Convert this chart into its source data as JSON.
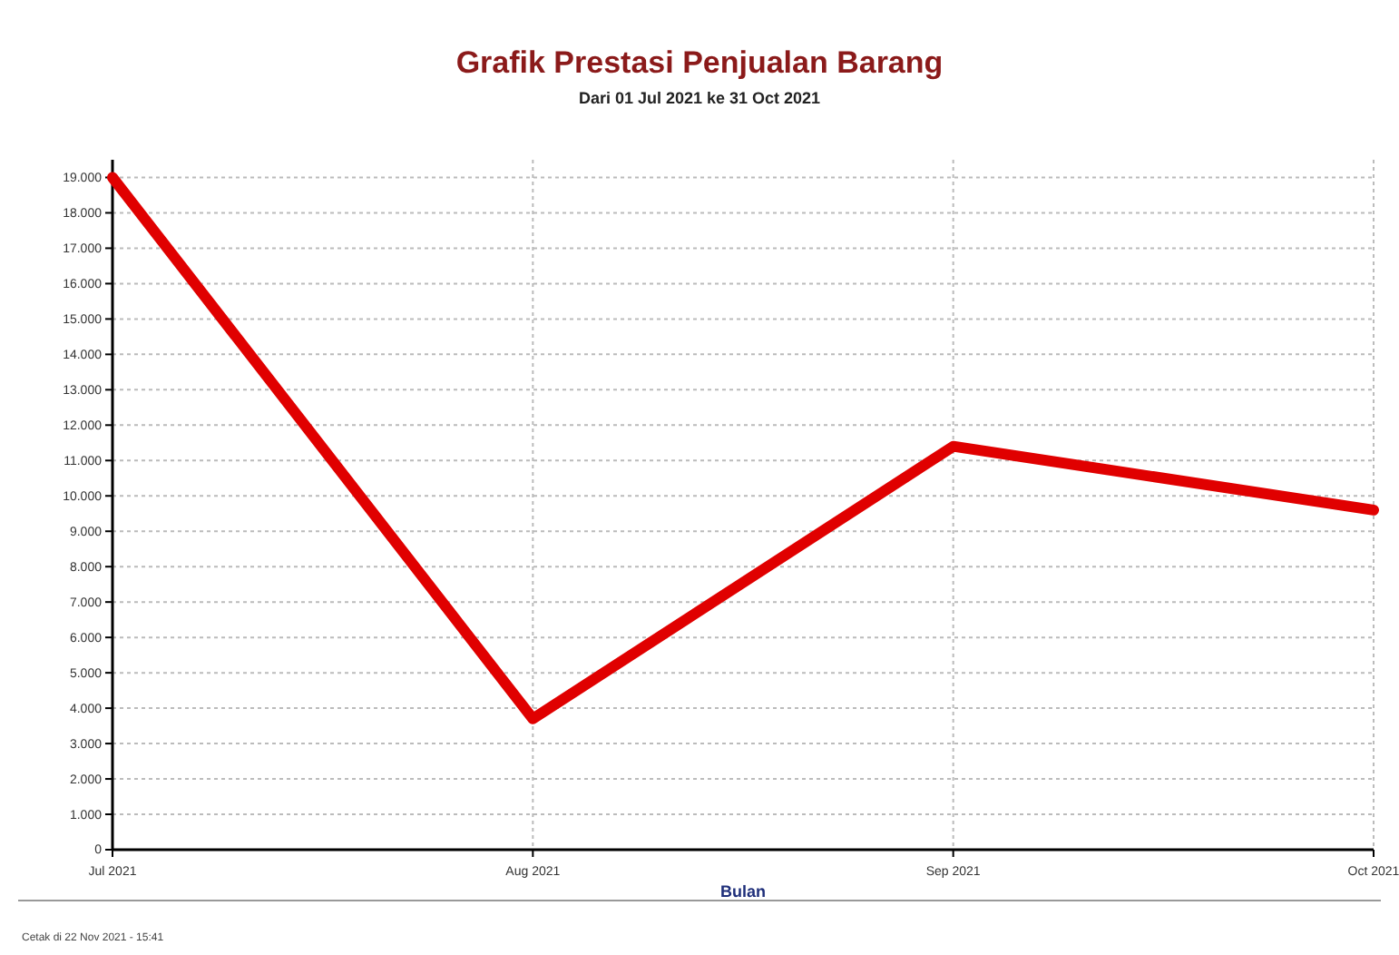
{
  "chart_data": {
    "type": "line",
    "title": "Grafik Prestasi Penjualan Barang",
    "subtitle": "Dari 01 Jul 2021 ke 31 Oct 2021",
    "xlabel": "Bulan",
    "categories": [
      "Jul 2021",
      "Aug 2021",
      "Sep 2021",
      "Oct 2021"
    ],
    "series": [
      {
        "color": "#e00000",
        "values": [
          19000,
          3700,
          11400,
          9600
        ]
      }
    ],
    "ylim": [
      0,
      19500
    ],
    "yticks": [
      {
        "value": 0,
        "label": "0"
      },
      {
        "value": 1000,
        "label": "1.000"
      },
      {
        "value": 2000,
        "label": "2.000"
      },
      {
        "value": 3000,
        "label": "3.000"
      },
      {
        "value": 4000,
        "label": "4.000"
      },
      {
        "value": 5000,
        "label": "5.000"
      },
      {
        "value": 6000,
        "label": "6.000"
      },
      {
        "value": 7000,
        "label": "7.000"
      },
      {
        "value": 8000,
        "label": "8.000"
      },
      {
        "value": 9000,
        "label": "9.000"
      },
      {
        "value": 10000,
        "label": "10.000"
      },
      {
        "value": 11000,
        "label": "11.000"
      },
      {
        "value": 12000,
        "label": "12.000"
      },
      {
        "value": 13000,
        "label": "13.000"
      },
      {
        "value": 14000,
        "label": "14.000"
      },
      {
        "value": 15000,
        "label": "15.000"
      },
      {
        "value": 16000,
        "label": "16.000"
      },
      {
        "value": 17000,
        "label": "17.000"
      },
      {
        "value": 18000,
        "label": "18.000"
      },
      {
        "value": 19000,
        "label": "19.000"
      }
    ],
    "grid": true,
    "marker": "none",
    "line_style": "solid",
    "annotations": [
      "Cetak di 22 Nov 2021 - 15:41"
    ]
  }
}
